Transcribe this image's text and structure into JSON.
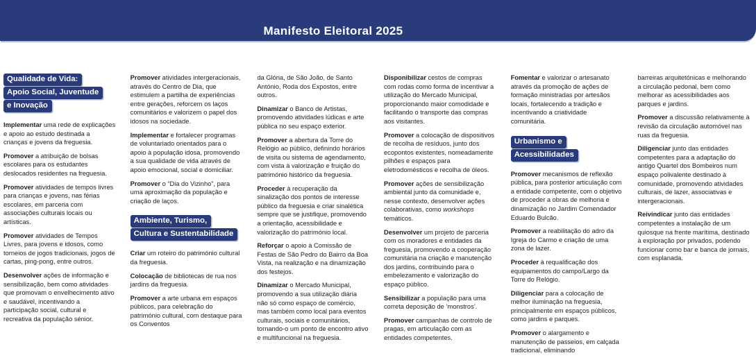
{
  "header": {
    "title": "Manifesto Eleitoral 2025"
  },
  "theme": {
    "navy": "#2a3b7c",
    "shadow": "#aebad2",
    "text": "#1f1f1f"
  },
  "columns": [
    {
      "blocks": [
        {
          "type": "heading",
          "lines": [
            "Qualidade de Vida:",
            "Apoio Social, Juventude",
            "e Inovação"
          ]
        },
        {
          "type": "para",
          "lead": "Implementar",
          "text": "uma rede de explicações e apoio ao estudo destinada a crianças e jovens da freguesia."
        },
        {
          "type": "para",
          "lead": "Promover",
          "text": "a atribuição de bolsas escolares para os estudantes deslocados residentes na freguesia."
        },
        {
          "type": "para",
          "lead": "Promover",
          "text": "atividades de tempos livres para crianças e jovens, nas férias escolares, em parceria com associações culturais locais ou artísticas."
        },
        {
          "type": "para",
          "lead": "Promover",
          "text": "atividades de Tempos Livres, para jovens e idosos, como torneios de jogos tradicionais, jogos de cartas, ping-pong, entre outros."
        },
        {
          "type": "para",
          "lead": "Desenvolver",
          "text": "ações de informação e sensibilização, bem como atividades que promovam o envelhecimento ativo e saudável, incentivando a participação social, cultural e recreativa da população sénior."
        }
      ]
    },
    {
      "blocks": [
        {
          "type": "para",
          "lead": "Promover",
          "text": "atividades intergeracionais, através do Centro de Dia, que estimulem a partilha de experiências entre gerações, reforcem os laços comunitários e valorizem o papel dos idosos na sociedade."
        },
        {
          "type": "para",
          "lead": "Implementar",
          "text": "e fortalecer programas de voluntariado orientados para o apoio à população idosa, promovendo a sua qualidade de vida através de apoio emocional, social e domiciliar."
        },
        {
          "type": "para",
          "lead": "Promover",
          "text": "o “Dia do Vizinho”, para uma aproximação da população e criação de laços."
        },
        {
          "type": "heading",
          "lines": [
            "Ambiente, Turismo,",
            "Cultura e Sustentabilidade"
          ]
        },
        {
          "type": "para",
          "lead": "Criar",
          "text": "um roteiro do património cultural da freguesia."
        },
        {
          "type": "para",
          "lead": "Colocação",
          "text": "de bibliotecas de rua nos jardins da freguesia."
        },
        {
          "type": "para",
          "lead": "Promover",
          "text": "a arte urbana em espaços públicos, para celebração do património cultural, com destaque para os Conventos"
        }
      ]
    },
    {
      "blocks": [
        {
          "type": "para",
          "lead": "",
          "text": "da Glória, de São João, de Santo António, Roda dos Expostos, entre outros."
        },
        {
          "type": "para",
          "lead": "Dinamizar",
          "text": "o Banco de Artistas, promovendo atividades lúdicas e arte pública no seu espaço exterior."
        },
        {
          "type": "para",
          "lead": "Promover",
          "text": "a abertura da Torre do Relógio ao público, definindo horários de visita ou sistema de agendamento, com vista à valorização e fruição do património histórico da freguesia."
        },
        {
          "type": "para",
          "lead": "Proceder",
          "text": "à recuperação da sinalização dos pontos de interesse público da freguesia e criar sinalética sempre que se justifique, promovendo a orientação, acessibilidade e valorização do património local."
        },
        {
          "type": "para",
          "lead": "Reforçar",
          "text": "o apoio à Comissão de Festas de São Pedro do Bairro da Boa Vista, na realização e na dinamização dos festejos."
        },
        {
          "type": "para",
          "lead": "Dinamizar",
          "text": "o Mercado Municipal, promovendo a sua utilização diária não só como espaço de comércio, mas também como local para eventos culturais, sociais e comunitários, tornando-o um ponto de encontro ativo e multifuncional na freguesia."
        }
      ]
    },
    {
      "blocks": [
        {
          "type": "para",
          "lead": "Disponibilizar",
          "text": "cestos de compras com rodas como forma de incentivar a utilização do Mercado Municipal, proporcionando maior comodidade e facilitando o transporte das compras aos visitantes."
        },
        {
          "type": "para",
          "lead": "Promover",
          "text": "a colocação de dispositivos de recolha de resíduos, junto dos ecopontos existentes, nomeadamente pilhões e espaços para eletrodomésticos e recolha de óleos."
        },
        {
          "type": "para",
          "lead": "Promover",
          "text": "ações de sensibilização ambiental junto da comunidade e, nesse contexto, desenvolver ações colaborativas, como *workshops* temáticos."
        },
        {
          "type": "para",
          "lead": "Desenvolver",
          "text": "um projeto de parceria com os moradores e entidades da freguesia, promovendo a cooperação comunitária na criação e manutenção dos jardins, contribuindo para o embelezamento e valorização do espaço público."
        },
        {
          "type": "para",
          "lead": "Sensibilizar",
          "text": "a população para uma correta deposição de ‘monstros’."
        },
        {
          "type": "para",
          "lead": "Promover",
          "text": "campanhas de controlo de pragas, em articulação com as entidades competentes."
        }
      ]
    },
    {
      "blocks": [
        {
          "type": "para",
          "lead": "Fomentar",
          "text": "e valorizar o artesanato através da promoção de ações de formação ministradas por artesãos locais, fortalecendo a tradição e incentivando a criatividade comunitária."
        },
        {
          "type": "heading",
          "lines": [
            "Urbanismo e",
            "Acessibilidades"
          ]
        },
        {
          "type": "para",
          "lead": "Promover",
          "text": "mecanismos de reflexão pública, para posterior articulação com a entidade competente, com o objetivo de proceder a obras de melhoria e dinamização no Jardim Comendador Eduardo Bulcão."
        },
        {
          "type": "para",
          "lead": "Promover",
          "text": "a reabilitação do adro da Igreja do Carmo e criação de uma zona de lazer."
        },
        {
          "type": "para",
          "lead": "Proceder",
          "text": "à requalificação dos equipamentos do campo/Largo da Torre do Relógio."
        },
        {
          "type": "para",
          "lead": "Diligenciar",
          "text": "para a colocação de melhor iluminação na freguesia, principalmente em espaços públicos, como jardins e parques."
        },
        {
          "type": "para",
          "lead": "Promover",
          "text": "o alargamento e manutenção de passeios, em calçada tradicional, eliminando"
        }
      ]
    },
    {
      "blocks": [
        {
          "type": "para",
          "lead": "",
          "text": "barreiras arquitetónicas e melhorando a circulação pedonal, bem como melhorar as acessibilidades aos parques e jardins."
        },
        {
          "type": "para",
          "lead": "Promover",
          "text": "a discussão relativamente à revisão da circulação automóvel nas ruas da freguesia."
        },
        {
          "type": "para",
          "lead": "Diligenciar",
          "text": "junto das entidades competentes para a adaptação do antigo Quartel dos Bombeiros num espaço polivalente destinado à comunidade, promovendo atividades culturais, de lazer, associativas e intergeracionais."
        },
        {
          "type": "para",
          "lead": "Reivindicar",
          "text": "junto das entidades competentes a instalação de um quiosque na frente marítima, destinado à exploração por privados, podendo funcionar como bar e banca de jornais, com esplanada."
        }
      ]
    }
  ]
}
